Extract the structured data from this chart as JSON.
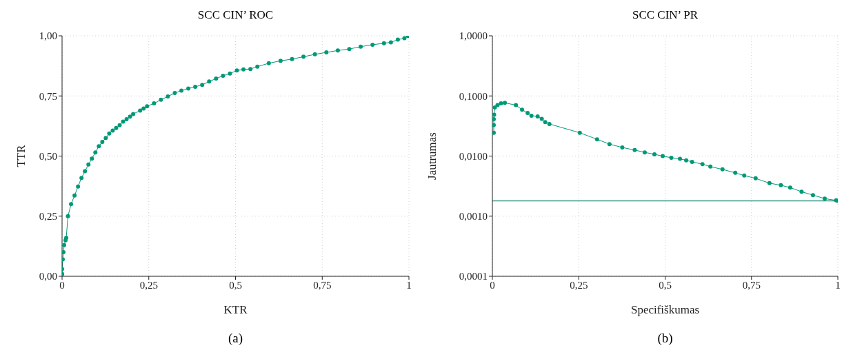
{
  "chart_data": [
    {
      "type": "line",
      "title": "SCC CIN’ ROC",
      "xlabel": "KTR",
      "ylabel": "TTR",
      "annotations": [
        "(a)"
      ],
      "marker": "circle",
      "grid": true,
      "xlim": [
        0,
        1
      ],
      "ylim": [
        0,
        1
      ],
      "xticks": [
        {
          "value": 0,
          "label": "0"
        },
        {
          "value": 0.25,
          "label": "0,25"
        },
        {
          "value": 0.5,
          "label": "0,5"
        },
        {
          "value": 0.75,
          "label": "0,75"
        },
        {
          "value": 1,
          "label": "1"
        }
      ],
      "yticks": [
        {
          "value": 0,
          "label": "0,00"
        },
        {
          "value": 0.25,
          "label": "0,25"
        },
        {
          "value": 0.5,
          "label": "0,50"
        },
        {
          "value": 0.75,
          "label": "0,75"
        },
        {
          "value": 1,
          "label": "1,00"
        }
      ],
      "series": [
        {
          "color": "#009977",
          "x": [
            0,
            0,
            0,
            0.002,
            0.004,
            0.006,
            0.01,
            0.012,
            0.017,
            0.026,
            0.036,
            0.046,
            0.056,
            0.066,
            0.076,
            0.086,
            0.096,
            0.106,
            0.116,
            0.126,
            0.136,
            0.146,
            0.156,
            0.166,
            0.176,
            0.186,
            0.196,
            0.205,
            0.225,
            0.235,
            0.245,
            0.265,
            0.285,
            0.305,
            0.325,
            0.344,
            0.364,
            0.384,
            0.404,
            0.424,
            0.444,
            0.464,
            0.484,
            0.504,
            0.523,
            0.543,
            0.563,
            0.596,
            0.63,
            0.663,
            0.696,
            0.729,
            0.762,
            0.795,
            0.828,
            0.861,
            0.895,
            0.928,
            0.948,
            0.968,
            0.987,
            0.997,
            1
          ],
          "values": [
            0,
            0.01,
            0.03,
            0.07,
            0.1,
            0.13,
            0.15,
            0.16,
            0.25,
            0.3,
            0.336,
            0.373,
            0.409,
            0.437,
            0.465,
            0.489,
            0.515,
            0.541,
            0.559,
            0.575,
            0.594,
            0.606,
            0.617,
            0.628,
            0.643,
            0.653,
            0.664,
            0.675,
            0.689,
            0.698,
            0.707,
            0.719,
            0.734,
            0.748,
            0.762,
            0.772,
            0.781,
            0.788,
            0.796,
            0.81,
            0.822,
            0.834,
            0.843,
            0.856,
            0.86,
            0.862,
            0.872,
            0.886,
            0.896,
            0.903,
            0.913,
            0.923,
            0.931,
            0.939,
            0.945,
            0.955,
            0.963,
            0.969,
            0.973,
            0.984,
            0.99,
            0.999,
            1
          ]
        }
      ]
    },
    {
      "type": "line",
      "title": "SCC CIN’ PR",
      "xlabel": "Specifiškumas",
      "ylabel": "Jautrumas",
      "annotations": [
        "(b)"
      ],
      "marker": "circle",
      "grid": true,
      "log": "y",
      "xlim": [
        0,
        1
      ],
      "ylim": [
        0.0001,
        1
      ],
      "xticks": [
        {
          "value": 0,
          "label": "0"
        },
        {
          "value": 0.25,
          "label": "0,25"
        },
        {
          "value": 0.5,
          "label": "0,5"
        },
        {
          "value": 0.75,
          "label": "0,75"
        },
        {
          "value": 1,
          "label": "1"
        }
      ],
      "yticks": [
        {
          "value": 0.0001,
          "label": "0,0001"
        },
        {
          "value": 0.001,
          "label": "0,0010"
        },
        {
          "value": 0.01,
          "label": "0,0100"
        },
        {
          "value": 0.1,
          "label": "0,1000"
        },
        {
          "value": 1,
          "label": "1,0000"
        }
      ],
      "ref_lines": [
        {
          "axis": "y",
          "value": 0.0018,
          "color": "#3a9a8c"
        }
      ],
      "series": [
        {
          "color": "#009977",
          "x": [
            0.004,
            0.004,
            0.004,
            0.005,
            0.007,
            0.015,
            0.025,
            0.036,
            0.068,
            0.086,
            0.102,
            0.113,
            0.131,
            0.143,
            0.153,
            0.165,
            0.253,
            0.303,
            0.339,
            0.376,
            0.412,
            0.441,
            0.469,
            0.493,
            0.518,
            0.543,
            0.561,
            0.578,
            0.608,
            0.631,
            0.666,
            0.703,
            0.729,
            0.762,
            0.802,
            0.835,
            0.862,
            0.895,
            0.928,
            0.962,
            0.995,
            1
          ],
          "values": [
            0.0244,
            0.0327,
            0.041,
            0.0486,
            0.0644,
            0.0703,
            0.0754,
            0.0768,
            0.0703,
            0.059,
            0.0521,
            0.0469,
            0.0457,
            0.0415,
            0.0367,
            0.0342,
            0.0244,
            0.019,
            0.0158,
            0.0139,
            0.0126,
            0.0115,
            0.0107,
            0.00997,
            0.00938,
            0.00898,
            0.0085,
            0.008,
            0.00734,
            0.00667,
            0.006,
            0.00526,
            0.00473,
            0.00426,
            0.00354,
            0.00327,
            0.00299,
            0.00255,
            0.00224,
            0.00196,
            0.00183,
            0.0018
          ]
        }
      ]
    }
  ]
}
